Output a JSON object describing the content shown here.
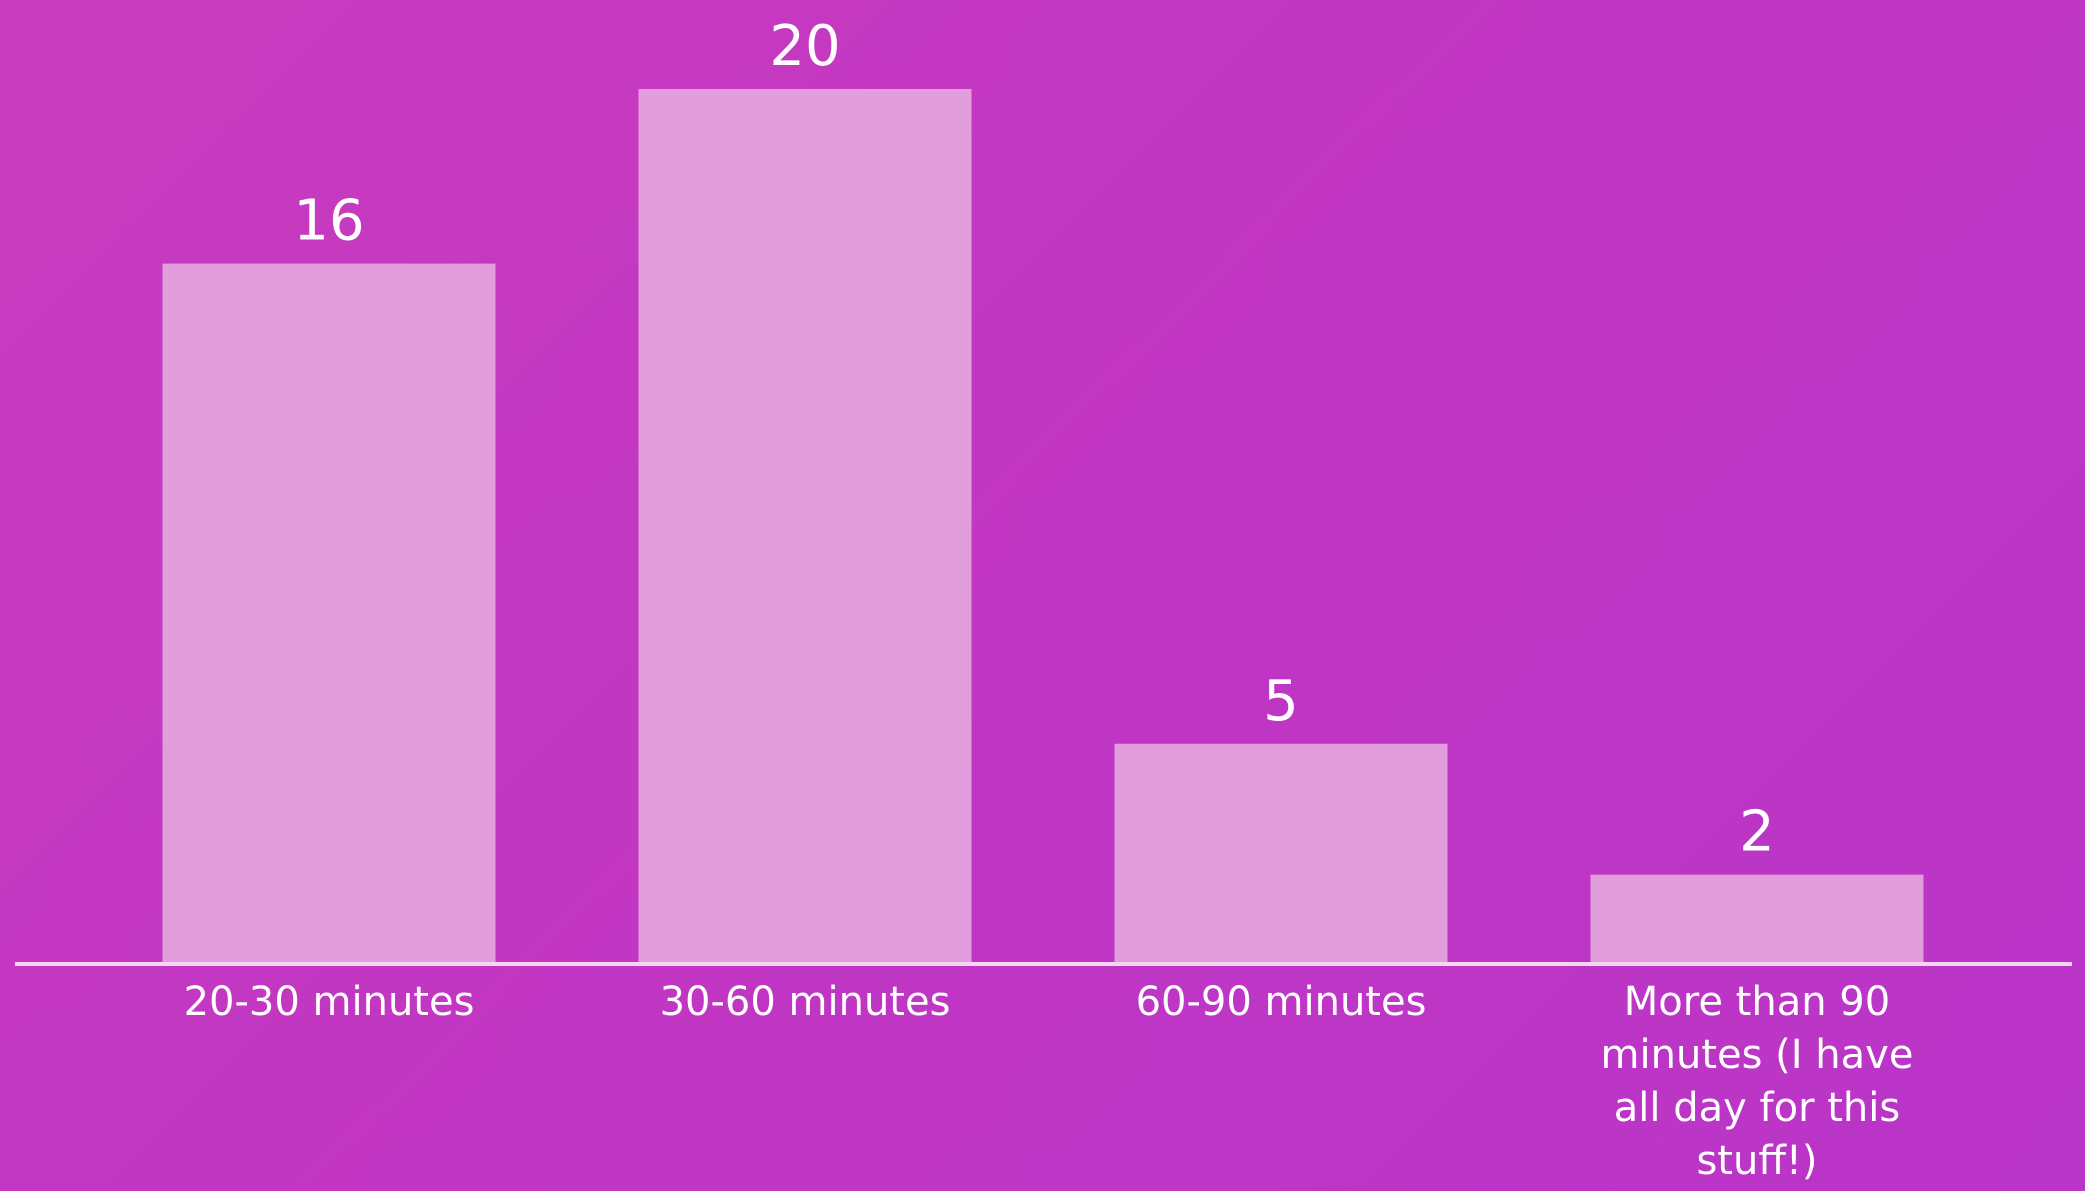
{
  "chart_data": {
    "type": "bar",
    "categories": [
      "20-30 minutes",
      "30-60 minutes",
      "60-90 minutes",
      "More than 90 minutes (I have all day for this stuff!)"
    ],
    "category_lines": [
      [
        "20-30 minutes"
      ],
      [
        "30-60 minutes"
      ],
      [
        "60-90 minutes"
      ],
      [
        "More than 90",
        "minutes (I have",
        "all day for this",
        "stuff!)"
      ]
    ],
    "values": [
      16,
      20,
      5,
      2
    ],
    "ylim": [
      0,
      20
    ],
    "grid": false,
    "colors": {
      "bar": "#e19ddc",
      "axis": "#f4d6f1",
      "text": "#ffffff"
    }
  }
}
